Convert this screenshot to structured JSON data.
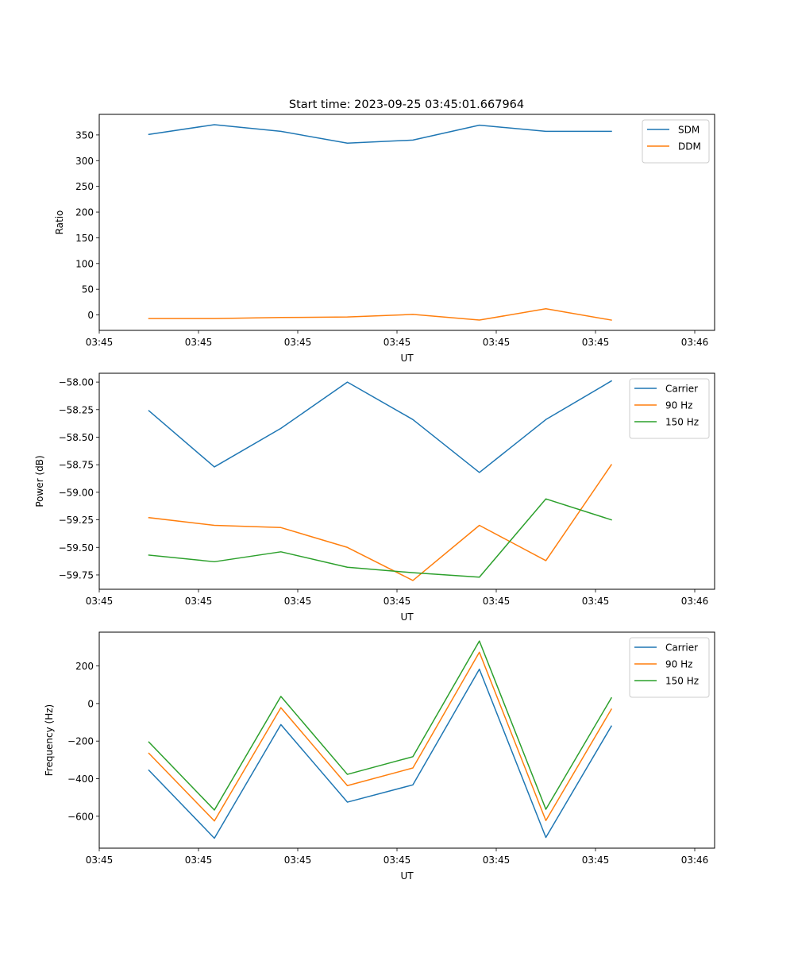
{
  "title": "Start time: 2023-09-25 03:45:01.667964",
  "chart_data": [
    {
      "type": "line",
      "ylabel": "Ratio",
      "xlabel": "UT",
      "xlim": [
        0,
        6.2
      ],
      "ylim": [
        -30,
        390
      ],
      "x": [
        0.5,
        1.16,
        1.83,
        2.5,
        3.16,
        3.83,
        4.5,
        5.16
      ],
      "x_ticks": [
        0,
        1,
        2,
        3,
        4,
        5,
        6
      ],
      "x_tick_labels": [
        "03:45",
        "03:45",
        "03:45",
        "03:45",
        "03:45",
        "03:45",
        "03:46"
      ],
      "y_ticks": [
        0,
        50,
        100,
        150,
        200,
        250,
        300,
        350
      ],
      "y_tick_labels": [
        "0",
        "50",
        "100",
        "150",
        "200",
        "250",
        "300",
        "350"
      ],
      "legend_position": "upper right",
      "series": [
        {
          "name": "SDM",
          "color": "#1f77b4",
          "values": [
            351,
            370,
            357,
            334,
            340,
            369,
            357,
            357
          ]
        },
        {
          "name": "DDM",
          "color": "#ff7f0e",
          "values": [
            -7,
            -7,
            -5,
            -4,
            1,
            -10,
            12,
            -10
          ]
        }
      ]
    },
    {
      "type": "line",
      "ylabel": "Power (dB)",
      "xlabel": "UT",
      "xlim": [
        0,
        6.2
      ],
      "ylim": [
        -59.88,
        -57.92
      ],
      "x": [
        0.5,
        1.16,
        1.83,
        2.5,
        3.16,
        3.83,
        4.5,
        5.16
      ],
      "x_ticks": [
        0,
        1,
        2,
        3,
        4,
        5,
        6
      ],
      "x_tick_labels": [
        "03:45",
        "03:45",
        "03:45",
        "03:45",
        "03:45",
        "03:45",
        "03:46"
      ],
      "y_ticks": [
        -59.75,
        -59.5,
        -59.25,
        -59.0,
        -58.75,
        -58.5,
        -58.25,
        -58.0
      ],
      "y_tick_labels": [
        "−59.75",
        "−59.50",
        "−59.25",
        "−59.00",
        "−58.75",
        "−58.50",
        "−58.25",
        "−58.00"
      ],
      "legend_position": "upper right",
      "series": [
        {
          "name": "Carrier",
          "color": "#1f77b4",
          "values": [
            -58.26,
            -58.77,
            -58.42,
            -58.0,
            -58.34,
            -58.82,
            -58.34,
            -57.99
          ]
        },
        {
          "name": "90 Hz",
          "color": "#ff7f0e",
          "values": [
            -59.23,
            -59.3,
            -59.32,
            -59.5,
            -59.8,
            -59.3,
            -59.62,
            -58.75
          ]
        },
        {
          "name": "150 Hz",
          "color": "#2ca02c",
          "values": [
            -59.57,
            -59.63,
            -59.54,
            -59.68,
            -59.73,
            -59.77,
            -59.06,
            -59.25
          ]
        }
      ]
    },
    {
      "type": "line",
      "ylabel": "Frequency (Hz)",
      "xlabel": "UT",
      "xlim": [
        0,
        6.2
      ],
      "ylim": [
        -770,
        380
      ],
      "x": [
        0.5,
        1.16,
        1.83,
        2.5,
        3.16,
        3.83,
        4.5,
        5.16
      ],
      "x_ticks": [
        0,
        1,
        2,
        3,
        4,
        5,
        6
      ],
      "x_tick_labels": [
        "03:45",
        "03:45",
        "03:45",
        "03:45",
        "03:45",
        "03:45",
        "03:46"
      ],
      "y_ticks": [
        -600,
        -400,
        -200,
        0,
        200
      ],
      "y_tick_labels": [
        "−600",
        "−400",
        "−200",
        "0",
        "200"
      ],
      "legend_position": "upper right",
      "series": [
        {
          "name": "Carrier",
          "color": "#1f77b4",
          "values": [
            -355,
            -717,
            -112,
            -525,
            -433,
            183,
            -713,
            -120
          ]
        },
        {
          "name": "90 Hz",
          "color": "#ff7f0e",
          "values": [
            -265,
            -625,
            -22,
            -437,
            -343,
            273,
            -623,
            -30
          ]
        },
        {
          "name": "150 Hz",
          "color": "#2ca02c",
          "values": [
            -205,
            -567,
            38,
            -377,
            -283,
            333,
            -563,
            30
          ]
        }
      ]
    }
  ]
}
